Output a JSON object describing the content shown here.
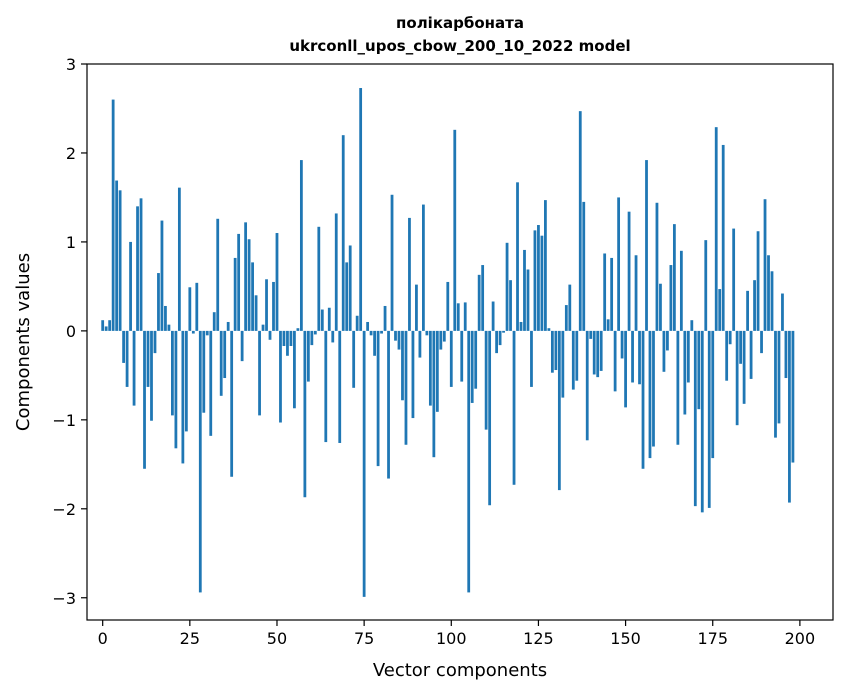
{
  "chart_data": {
    "type": "bar",
    "title_line1": "полікарбоната",
    "title_line2": "ukrconll_upos_cbow_200_10_2022 model",
    "xlabel": "Vector components",
    "ylabel": "Components values",
    "xlim": [
      -4.5,
      209.5
    ],
    "ylim": [
      -3.25,
      3.0
    ],
    "xticks": [
      0,
      25,
      50,
      75,
      100,
      125,
      150,
      175,
      200
    ],
    "xtick_labels": [
      "0",
      "25",
      "50",
      "75",
      "100",
      "125",
      "150",
      "175",
      "200"
    ],
    "yticks": [
      3,
      2,
      1,
      0,
      -1,
      -2,
      -3
    ],
    "ytick_labels": [
      "3",
      "2",
      "1",
      "0",
      "−1",
      "−2",
      "−3"
    ],
    "bar_color": "#1f77b4",
    "grid": false,
    "values": [
      0.12,
      0.05,
      0.12,
      2.6,
      1.69,
      1.58,
      -0.36,
      -0.63,
      1.0,
      -0.84,
      1.4,
      1.49,
      -1.55,
      -0.63,
      -1.01,
      -0.25,
      0.65,
      1.24,
      0.28,
      0.07,
      -0.95,
      -1.32,
      1.61,
      -1.49,
      -1.13,
      0.49,
      -0.03,
      0.54,
      -2.94,
      -0.92,
      -0.05,
      -1.18,
      0.21,
      1.26,
      -0.73,
      -0.53,
      0.1,
      -1.64,
      0.82,
      1.09,
      -0.34,
      1.22,
      1.03,
      0.77,
      0.4,
      -0.95,
      0.07,
      0.58,
      -0.1,
      0.55,
      1.1,
      -1.03,
      -0.17,
      -0.28,
      -0.17,
      -0.87,
      0.03,
      1.92,
      -1.87,
      -0.57,
      -0.16,
      -0.04,
      1.17,
      0.24,
      -1.25,
      0.26,
      -0.13,
      1.32,
      -1.26,
      2.2,
      0.77,
      0.96,
      -0.64,
      0.17,
      2.73,
      -2.99,
      0.1,
      -0.05,
      -0.28,
      -1.52,
      -0.03,
      0.28,
      -1.66,
      1.53,
      -0.11,
      -0.21,
      -0.78,
      -1.28,
      1.27,
      -0.98,
      0.52,
      -0.3,
      1.42,
      -0.05,
      -0.84,
      -1.42,
      -0.91,
      -0.21,
      -0.12,
      0.55,
      -0.63,
      2.26,
      0.31,
      -0.57,
      0.32,
      -2.94,
      -0.81,
      -0.65,
      0.63,
      0.74,
      -1.11,
      -1.96,
      0.33,
      -0.25,
      -0.16,
      -0.02,
      0.99,
      0.57,
      -1.73,
      1.67,
      0.1,
      0.91,
      0.69,
      -0.63,
      1.13,
      1.19,
      1.07,
      1.47,
      0.03,
      -0.47,
      -0.44,
      -1.79,
      -0.75,
      0.29,
      0.52,
      -0.66,
      -0.56,
      2.47,
      1.45,
      -1.23,
      -0.09,
      -0.49,
      -0.52,
      -0.45,
      0.87,
      0.13,
      0.82,
      -0.68,
      1.5,
      -0.31,
      -0.86,
      1.34,
      -0.58,
      0.85,
      -0.6,
      -1.55,
      1.92,
      -1.43,
      -1.3,
      1.44,
      0.53,
      -0.46,
      -0.22,
      0.74,
      1.2,
      -1.28,
      0.9,
      -0.94,
      -0.58,
      0.12,
      -1.97,
      -0.88,
      -2.04,
      1.02,
      -1.99,
      -1.43,
      2.29,
      0.47,
      2.09,
      -0.56,
      -0.15,
      1.15,
      -1.06,
      -0.37,
      -0.82,
      0.45,
      -0.54,
      0.57,
      1.12,
      -0.25,
      1.48,
      0.85,
      0.67,
      -1.2,
      -1.04,
      0.42,
      -0.53,
      -1.93,
      -1.48,
      0.0
    ]
  }
}
